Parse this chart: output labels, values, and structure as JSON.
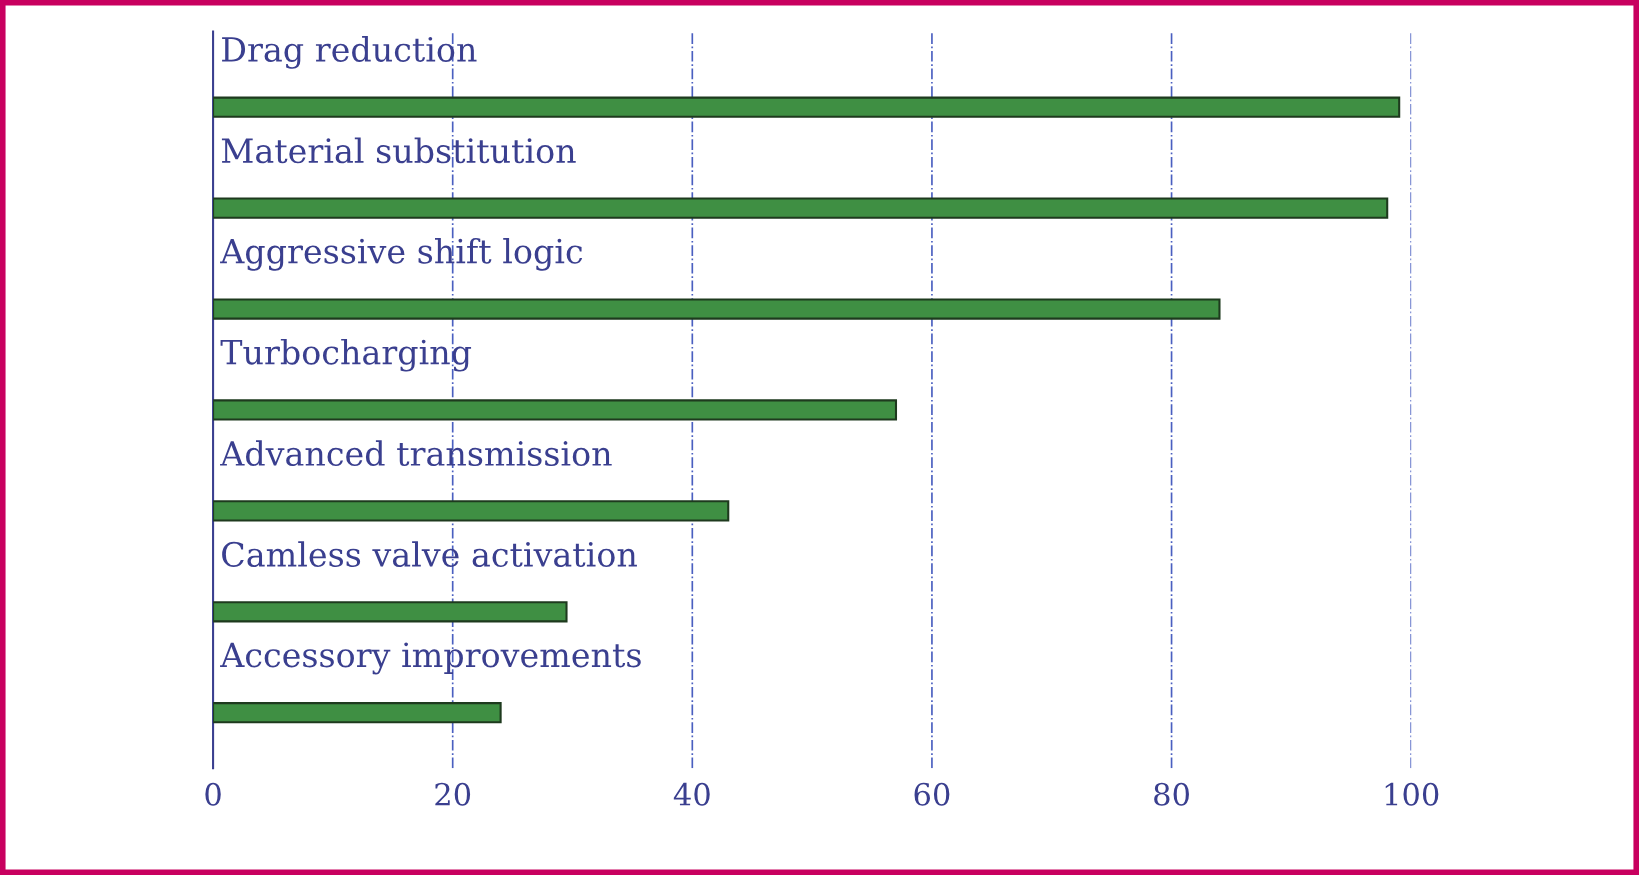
{
  "chart_data": {
    "type": "bar",
    "orientation": "horizontal",
    "categories": [
      "Drag reduction",
      "Material substitution",
      "Aggressive shift logic",
      "Turbocharging",
      "Advanced transmission",
      "Camless valve activation",
      "Accessory improvements"
    ],
    "values": [
      99,
      98,
      84,
      57,
      43,
      29.5,
      24
    ],
    "color": "#3f8f43",
    "xlim": [
      0,
      100
    ],
    "xticks": [
      0,
      20,
      40,
      60,
      80,
      100
    ],
    "grid": "x",
    "tick_labels": "x"
  }
}
